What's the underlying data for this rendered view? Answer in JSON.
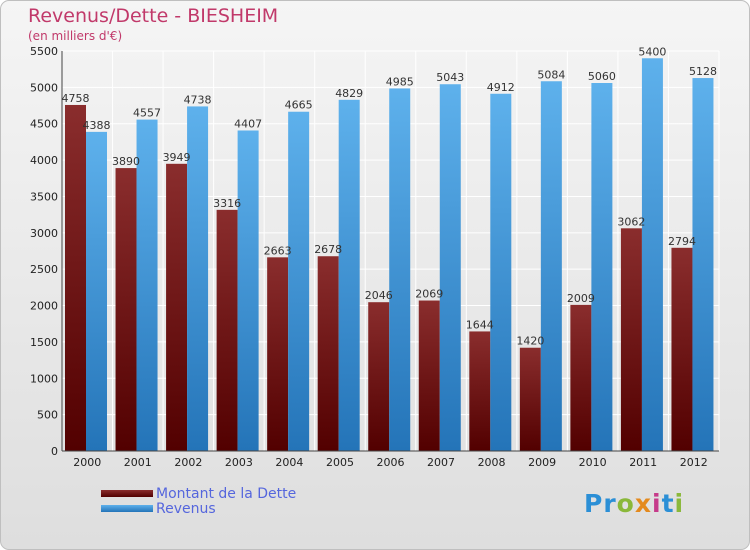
{
  "page": {
    "title": "Revenus/Dette - BIESHEIM",
    "subtitle": "(en milliers d'€)"
  },
  "chart_data": {
    "type": "bar",
    "title": "Revenus/Dette - BIESHEIM",
    "subtitle": "(en milliers d'€)",
    "categories": [
      "2000",
      "2001",
      "2002",
      "2003",
      "2004",
      "2005",
      "2006",
      "2007",
      "2008",
      "2009",
      "2010",
      "2011",
      "2012"
    ],
    "series": [
      {
        "name": "Montant de la Dette",
        "color": "#7a1f1f",
        "values": [
          4758,
          3890,
          3949,
          3316,
          2663,
          2678,
          2046,
          2069,
          1644,
          1420,
          2009,
          3062,
          2794
        ]
      },
      {
        "name": "Revenus",
        "color": "#3a96dd",
        "values": [
          4388,
          4557,
          4738,
          4407,
          4665,
          4829,
          4985,
          5043,
          4912,
          5084,
          5060,
          5400,
          5128
        ]
      }
    ],
    "ylim": [
      0,
      5500
    ],
    "yticks": [
      0,
      500,
      1000,
      1500,
      2000,
      2500,
      3000,
      3500,
      4000,
      4500,
      5000,
      5500
    ],
    "grid": true,
    "xlabel": "",
    "ylabel": ""
  },
  "legend": {
    "items": [
      {
        "label": "Montant de la Dette",
        "color": "#6b1515"
      },
      {
        "label": "Revenus",
        "color": "#3d9be0"
      }
    ]
  },
  "logo": {
    "text": "Proxiti"
  }
}
